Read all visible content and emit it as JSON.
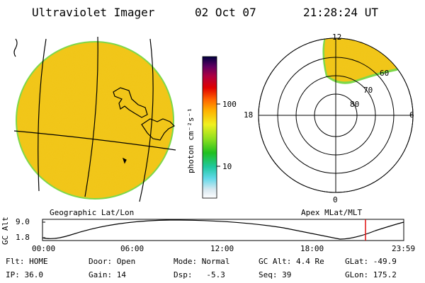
{
  "header": {
    "instrument": "Ultraviolet Imager",
    "date": "02 Oct 07",
    "time": "21:28:24 UT"
  },
  "colorbar": {
    "unit_label": "photon cm⁻²s⁻¹",
    "ticks": [
      "100",
      "10"
    ]
  },
  "polar_plot": {
    "mlt_labels": {
      "top": "12",
      "left": "18",
      "right": "6",
      "bottom": "0"
    },
    "lat_labels": [
      "60",
      "70",
      "80"
    ]
  },
  "panel_labels": {
    "left": "Geographic Lat/Lon",
    "right": "Apex MLat/MLT"
  },
  "altitude_plot": {
    "ylabel": "GC Alt",
    "yticks": [
      "9.0",
      "1.8"
    ],
    "xticks": [
      "00:00",
      "06:00",
      "12:00",
      "18:00",
      "23:59"
    ],
    "marker_time": "21:28"
  },
  "status": {
    "filter": "Flt: HOME",
    "door": "Door: Open",
    "mode": "Mode: Normal",
    "gc_alt": "GC Alt: 4.4 Re",
    "glat": "GLat: -49.9",
    "ip": "IP: 36.0",
    "gain": "Gain: 14",
    "dsp": "Dsp:   -5.3",
    "seq": "Seq: 39",
    "glon": "GLon: 175.2"
  },
  "colors": {
    "disk_fill": "#f2c61e",
    "disk_edge": "#7dd84a",
    "marker": "#e01010"
  }
}
